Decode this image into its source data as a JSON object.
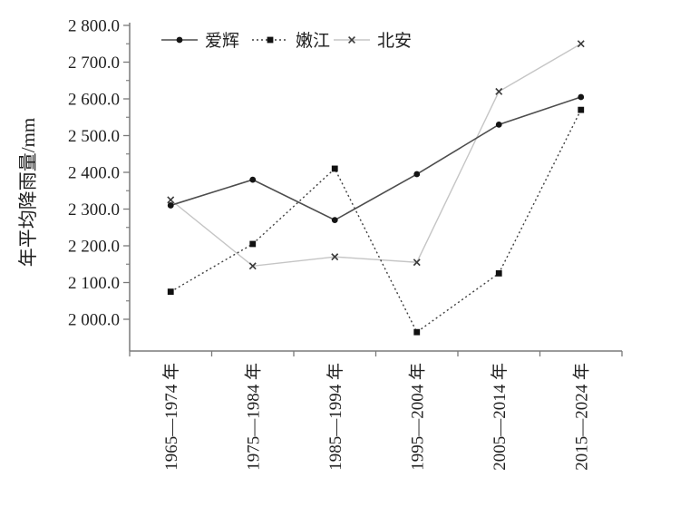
{
  "figure": {
    "background": "#ffffff",
    "axis_color": "#7a7a7a",
    "text_color": "#1f1f1f"
  },
  "chart_data": {
    "type": "line",
    "title": "",
    "xlabel": "",
    "ylabel": "年平均降雨量/mm",
    "ylim": [
      2000,
      2800
    ],
    "ytick_step": 100,
    "ytick_minor_step": 50,
    "ytick_values": [
      2000,
      2100,
      2200,
      2300,
      2400,
      2500,
      2600,
      2700,
      2800
    ],
    "ytick_labels": [
      "2 000.0",
      "2 100.0",
      "2 200.0",
      "2 300.0",
      "2 400.0",
      "2 500.0",
      "2 600.0",
      "2 700.0",
      "2 800.0"
    ],
    "categories": [
      "1965—1974 年",
      "1975—1984 年",
      "1985—1994 年",
      "1995—2004 年",
      "2005—2014 年",
      "2015—2024 年"
    ],
    "grid": false,
    "legend_position": "top",
    "series": [
      {
        "name": "爱辉",
        "values": [
          2310,
          2380,
          2270,
          2395,
          2530,
          2605
        ],
        "line_color": "#4d4d4d",
        "line_style": "solid",
        "line_width": 1.6,
        "marker": "circle",
        "marker_color": "#141414"
      },
      {
        "name": "嫩江",
        "values": [
          2075,
          2205,
          2410,
          1965,
          2125,
          2570
        ],
        "line_color": "#3f3f3f",
        "line_style": "dotted",
        "line_width": 1.4,
        "marker": "square",
        "marker_color": "#111111"
      },
      {
        "name": "北安",
        "values": [
          2325,
          2145,
          2170,
          2155,
          2620,
          2750
        ],
        "line_color": "#c5c5c5",
        "line_style": "solid",
        "line_width": 1.4,
        "marker": "x",
        "marker_color": "#3a3a3a"
      }
    ]
  }
}
